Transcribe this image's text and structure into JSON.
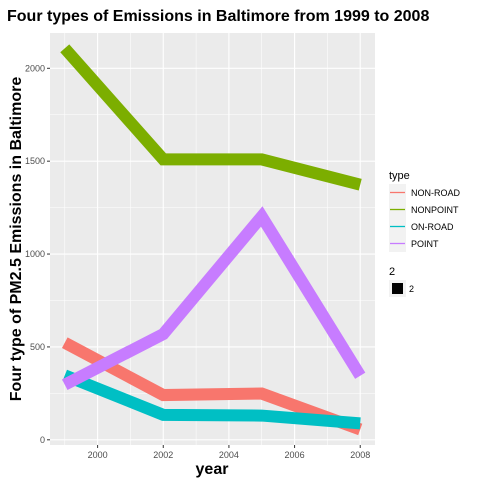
{
  "chart_data": {
    "type": "line",
    "title": "Four types of Emissions in Baltimore from 1999 to 2008",
    "xlabel": "year",
    "ylabel": "Four type of PM2.5 Emissions in Baltimore",
    "x": [
      1999,
      2002,
      2005,
      2008
    ],
    "x_ticks": [
      2000,
      2002,
      2004,
      2006,
      2008
    ],
    "x_tick_labels": [
      "2000",
      "2002",
      "2004",
      "2006",
      "2008"
    ],
    "xlim": [
      1998.55,
      2008.45
    ],
    "y_ticks": [
      0,
      500,
      1000,
      1500,
      2000
    ],
    "y_tick_labels": [
      "0",
      "500",
      "1000",
      "1500",
      "2000"
    ],
    "ylim": [
      -28,
      2190
    ],
    "grid": true,
    "series": [
      {
        "name": "NON-ROAD",
        "color": "#F8766D",
        "values": [
          522.94,
          240.85,
          248.93,
          55.82
        ]
      },
      {
        "name": "NONPOINT",
        "color": "#7CAE00",
        "values": [
          2107.63,
          1509.5,
          1509.5,
          1373.21
        ]
      },
      {
        "name": "ON-ROAD",
        "color": "#00BFC4",
        "values": [
          346.82,
          134.31,
          130.43,
          88.28
        ]
      },
      {
        "name": "POINT",
        "color": "#C77CFF",
        "values": [
          296.8,
          569.26,
          1202.49,
          344.98
        ]
      }
    ],
    "legend": {
      "position": "right",
      "type_title": "type",
      "size_title": "2",
      "size_label": "2"
    }
  }
}
